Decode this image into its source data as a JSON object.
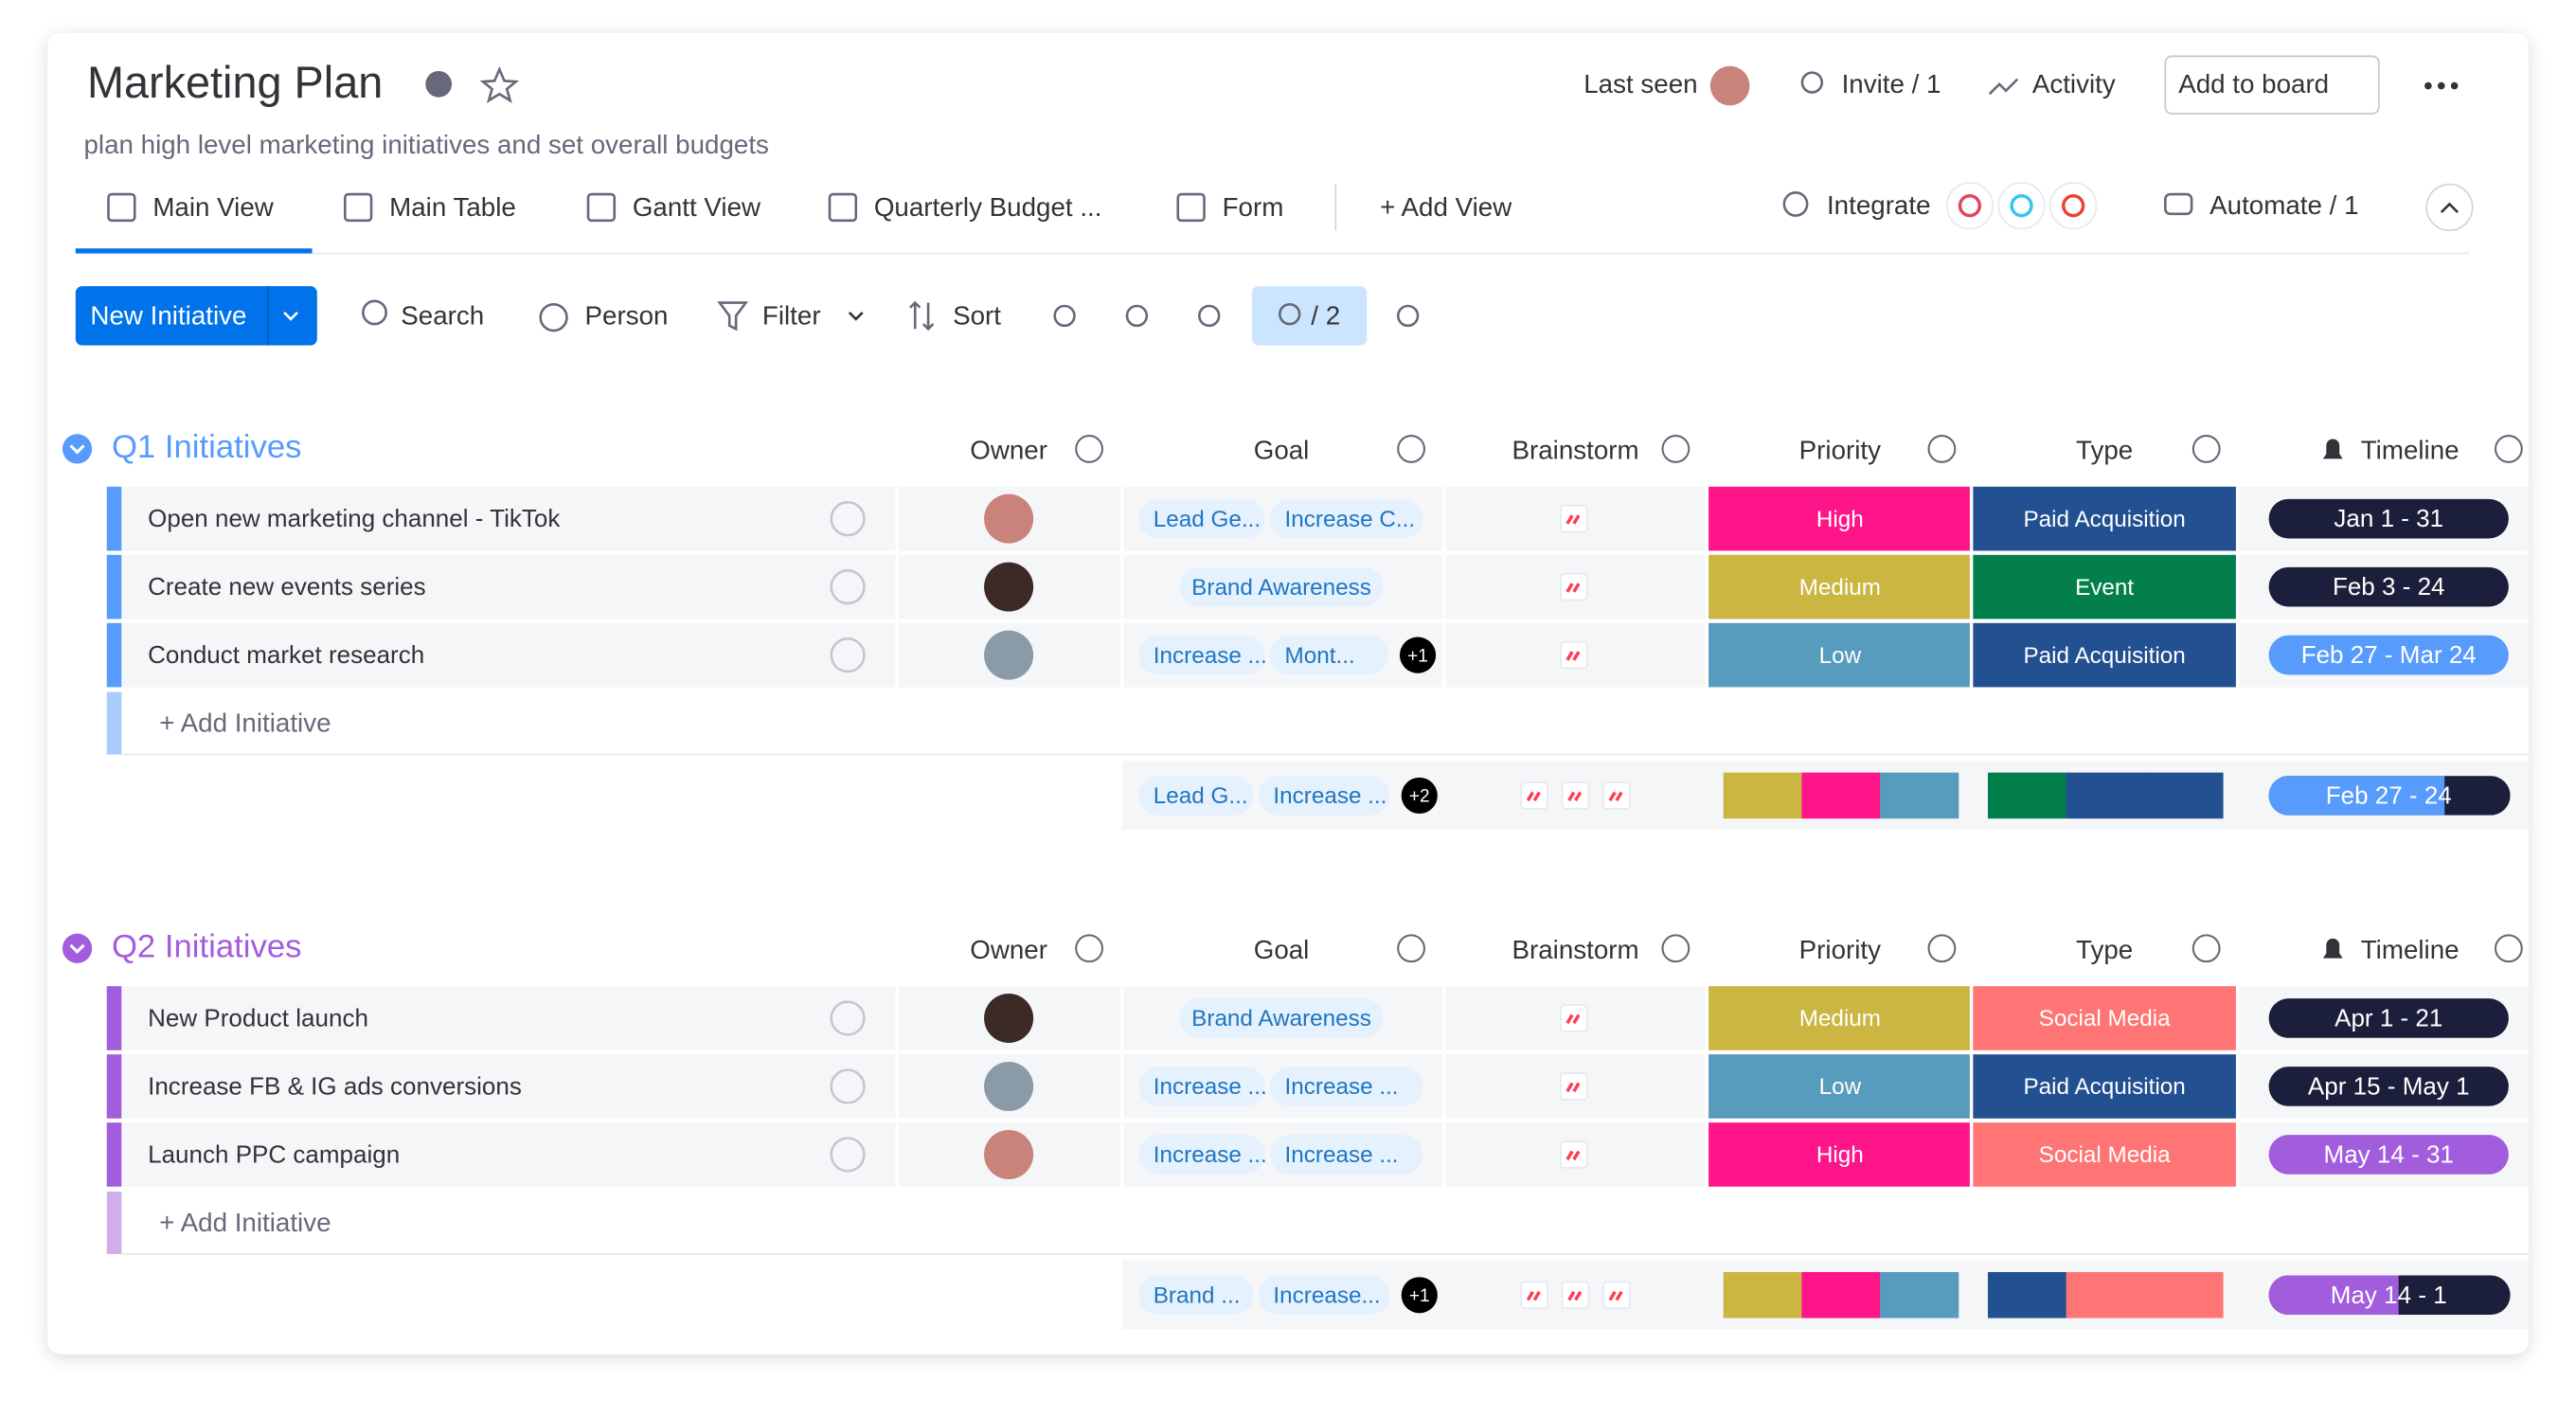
{
  "header": {
    "title": "Marketing Plan",
    "subtitle": "plan high level marketing initiatives and set overall budgets",
    "last_seen": "Last seen",
    "invite": "Invite / 1",
    "activity": "Activity",
    "add_to_board": "Add to board"
  },
  "views": [
    "Main View",
    "Main Table",
    "Gantt View",
    "Quarterly Budget ...",
    "Form",
    "+ Add View"
  ],
  "integrate": "Integrate",
  "automate": "Automate / 1",
  "toolbar": {
    "new_item": "New Initiative",
    "search": "Search",
    "person": "Person",
    "filter": "Filter",
    "sort": "Sort",
    "hidden_count": "/ 2"
  },
  "columns": [
    "Owner",
    "Goal",
    "Brainstorm",
    "Priority",
    "Type",
    "Timeline"
  ],
  "groups": [
    {
      "title": "Q1 Initiatives",
      "color": "#579bfc",
      "add_item": "+ Add Initiative",
      "rows": [
        {
          "name": "Open new marketing channel - TikTok",
          "goals": [
            "Lead Ge...",
            "Increase C..."
          ],
          "priority": {
            "label": "High",
            "color": "#ff158a"
          },
          "type": {
            "label": "Paid Acquisition",
            "color": "#225091"
          },
          "timeline": {
            "label": "Jan 1 - 31",
            "color": "#1c1f3b"
          }
        },
        {
          "name": "Create new events series",
          "goals": [
            "Brand Awareness"
          ],
          "priority": {
            "label": "Medium",
            "color": "#cab641"
          },
          "type": {
            "label": "Event",
            "color": "#037f4c"
          },
          "timeline": {
            "label": "Feb 3 - 24",
            "color": "#1c1f3b"
          }
        },
        {
          "name": "Conduct market research",
          "goals": [
            "Increase ...",
            "Mont..."
          ],
          "goal_more": "+1",
          "priority": {
            "label": "Low",
            "color": "#579bbd"
          },
          "type": {
            "label": "Paid Acquisition",
            "color": "#225091"
          },
          "timeline": {
            "label": "Feb 27 - Mar 24",
            "color": "#579bfc"
          }
        }
      ],
      "summary": {
        "goals": [
          "Lead G...",
          "Increase ..."
        ],
        "goal_more": "+2",
        "priority_colors": [
          "#cab641",
          "#ff158a",
          "#579bbd"
        ],
        "type_colors": [
          "#037f4c",
          "#225091",
          "#225091"
        ],
        "timeline": {
          "label": "Feb 27 - 24",
          "color": "#579bfc",
          "end_color": "#1c1f3b"
        }
      }
    },
    {
      "title": "Q2 Initiatives",
      "color": "#a25ddc",
      "add_item": "+ Add Initiative",
      "rows": [
        {
          "name": "New Product launch",
          "goals": [
            "Brand Awareness"
          ],
          "priority": {
            "label": "Medium",
            "color": "#cab641"
          },
          "type": {
            "label": "Social Media",
            "color": "#ff7575"
          },
          "timeline": {
            "label": "Apr 1 - 21",
            "color": "#1c1f3b"
          }
        },
        {
          "name": "Increase FB & IG ads conversions",
          "goals": [
            "Increase ...",
            "Increase ..."
          ],
          "priority": {
            "label": "Low",
            "color": "#579bbd"
          },
          "type": {
            "label": "Paid Acquisition",
            "color": "#225091"
          },
          "timeline": {
            "label": "Apr 15 - May 1",
            "color": "#1c1f3b"
          }
        },
        {
          "name": "Launch PPC campaign",
          "goals": [
            "Increase ...",
            "Increase ..."
          ],
          "priority": {
            "label": "High",
            "color": "#ff158a"
          },
          "type": {
            "label": "Social Media",
            "color": "#ff7575"
          },
          "timeline": {
            "label": "May 14 - 31",
            "color": "#a25ddc"
          }
        }
      ],
      "summary": {
        "goals": [
          "Brand ...",
          "Increase..."
        ],
        "goal_more": "+1",
        "priority_colors": [
          "#cab641",
          "#ff158a",
          "#579bbd"
        ],
        "type_colors": [
          "#225091",
          "#ff7575",
          "#ff7575"
        ],
        "timeline": {
          "label": "May 14 - 1",
          "color": "#a25ddc",
          "end_color": "#1c1f3b"
        }
      }
    }
  ]
}
